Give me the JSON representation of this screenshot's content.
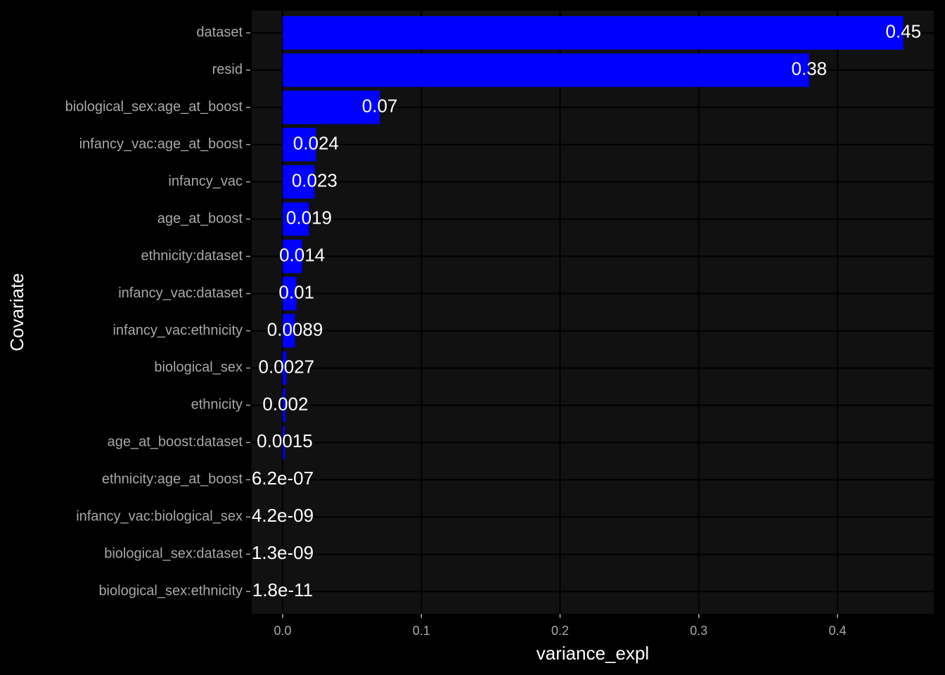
{
  "chart_data": {
    "type": "bar",
    "orientation": "horizontal",
    "x_label": "variance_expl",
    "y_label": "Covariate",
    "categories": [
      "dataset",
      "resid",
      "biological_sex:age_at_boost",
      "infancy_vac:age_at_boost",
      "infancy_vac",
      "age_at_boost",
      "ethnicity:dataset",
      "infancy_vac:dataset",
      "infancy_vac:ethnicity",
      "biological_sex",
      "ethnicity",
      "age_at_boost:dataset",
      "ethnicity:age_at_boost",
      "infancy_vac:biological_sex",
      "biological_sex:dataset",
      "biological_sex:ethnicity"
    ],
    "values": [
      0.4475,
      0.3796,
      0.07,
      0.024,
      0.023,
      0.019,
      0.014,
      0.01,
      0.0089,
      0.0027,
      0.002,
      0.0015,
      6.2e-07,
      4.2e-09,
      1.3e-09,
      1.8e-11
    ],
    "value_labels": [
      "0.45",
      "0.38",
      "0.07",
      "0.024",
      "0.023",
      "0.019",
      "0.014",
      "0.01",
      "0.0089",
      "0.0027",
      "0.002",
      "0.0015",
      "6.2e-07",
      "4.2e-09",
      "1.3e-09",
      "1.8e-11"
    ],
    "color": "#0000ff",
    "xlim": [
      -0.0223,
      0.4694
    ],
    "xticks": [
      {
        "value": 0,
        "label": "0.0"
      },
      0.1,
      0.2,
      0.3,
      0.4
    ],
    "grid": true
  }
}
